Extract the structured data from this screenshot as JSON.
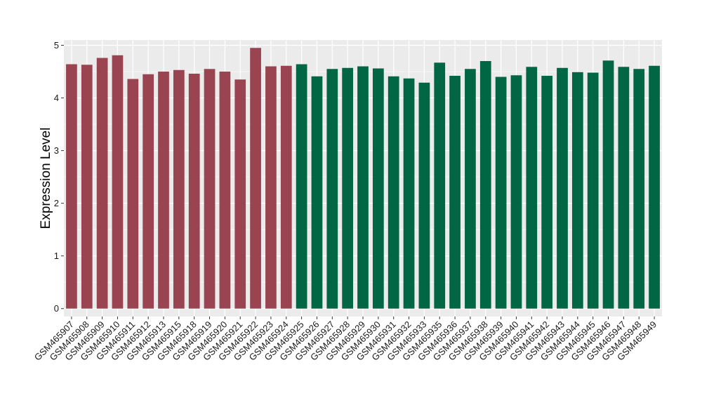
{
  "chart_data": {
    "type": "bar",
    "title": "",
    "xlabel": "",
    "ylabel": "Expression Level",
    "ylim": [
      -0.15,
      5.1
    ],
    "yticks": [
      0,
      1,
      2,
      3,
      4,
      5
    ],
    "grid": true,
    "legend": "none",
    "categories": [
      "GSM465907",
      "GSM465908",
      "GSM465909",
      "GSM465910",
      "GSM465911",
      "GSM465912",
      "GSM465913",
      "GSM465915",
      "GSM465918",
      "GSM465919",
      "GSM465920",
      "GSM465921",
      "GSM465922",
      "GSM465923",
      "GSM465924",
      "GSM465925",
      "GSM465926",
      "GSM465927",
      "GSM465928",
      "GSM465929",
      "GSM465930",
      "GSM465931",
      "GSM465932",
      "GSM465933",
      "GSM465935",
      "GSM465936",
      "GSM465937",
      "GSM465938",
      "GSM465939",
      "GSM465940",
      "GSM465941",
      "GSM465942",
      "GSM465943",
      "GSM465944",
      "GSM465945",
      "GSM465946",
      "GSM465947",
      "GSM465948",
      "GSM465949"
    ],
    "values": [
      4.64,
      4.63,
      4.76,
      4.81,
      4.36,
      4.45,
      4.5,
      4.53,
      4.46,
      4.55,
      4.5,
      4.35,
      4.95,
      4.6,
      4.61,
      4.64,
      4.41,
      4.55,
      4.57,
      4.6,
      4.56,
      4.41,
      4.37,
      4.29,
      4.67,
      4.42,
      4.55,
      4.7,
      4.4,
      4.43,
      4.59,
      4.42,
      4.57,
      4.49,
      4.48,
      4.71,
      4.59,
      4.55,
      4.61
    ],
    "groups": [
      1,
      1,
      1,
      1,
      1,
      1,
      1,
      1,
      1,
      1,
      1,
      1,
      1,
      1,
      1,
      2,
      2,
      2,
      2,
      2,
      2,
      2,
      2,
      2,
      2,
      2,
      2,
      2,
      2,
      2,
      2,
      2,
      2,
      2,
      2,
      2,
      2,
      2,
      2
    ],
    "colors": {
      "group1": "#9a4451",
      "group2": "#006644",
      "panel": "#ebebeb",
      "grid": "#ffffff"
    }
  }
}
